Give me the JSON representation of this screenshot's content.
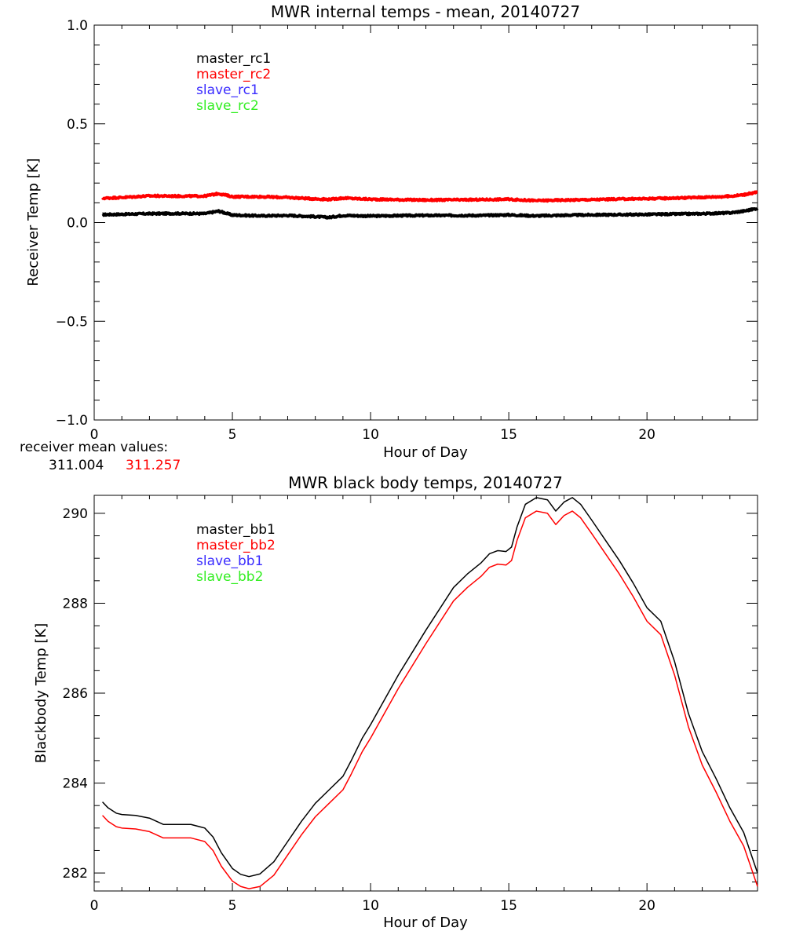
{
  "colors": {
    "black": "#000000",
    "red": "#ff0000",
    "blue": "#3a2cff",
    "green": "#33ee22"
  },
  "chart_data": [
    {
      "type": "line",
      "title": "MWR internal temps - mean, 20140727",
      "xlabel": "Hour of Day",
      "ylabel": "Receiver Temp [K]",
      "xlim": [
        0,
        24
      ],
      "ylim": [
        -1.0,
        1.0
      ],
      "xticks": [
        0,
        5,
        10,
        15,
        20
      ],
      "xtick_labels": [
        "0",
        "5",
        "10",
        "15",
        "20"
      ],
      "yticks": [
        -1.0,
        -0.5,
        0.0,
        0.5,
        1.0
      ],
      "ytick_labels": [
        "−1.0",
        "−0.5",
        "0.0",
        "0.5",
        "1.0"
      ],
      "grid": false,
      "legend_position": "top-left",
      "legend": [
        {
          "label": "master_rc1",
          "color": "#000000"
        },
        {
          "label": "master_rc2",
          "color": "#ff0000"
        },
        {
          "label": "slave_rc1",
          "color": "#3a2cff"
        },
        {
          "label": "slave_rc2",
          "color": "#33ee22"
        }
      ],
      "series": [
        {
          "name": "master_rc1",
          "color": "#000000",
          "x": [
            0.3,
            1,
            2,
            3,
            4,
            4.5,
            5,
            6,
            7,
            8,
            8.5,
            9,
            10,
            11,
            12,
            13,
            14,
            15,
            15.5,
            16,
            17,
            18,
            19,
            20,
            21,
            22,
            23,
            23.5,
            24
          ],
          "y": [
            0.04,
            0.042,
            0.045,
            0.046,
            0.045,
            0.058,
            0.038,
            0.034,
            0.036,
            0.03,
            0.026,
            0.036,
            0.033,
            0.035,
            0.036,
            0.036,
            0.036,
            0.039,
            0.036,
            0.034,
            0.037,
            0.039,
            0.04,
            0.041,
            0.043,
            0.045,
            0.049,
            0.058,
            0.072
          ]
        },
        {
          "name": "master_rc2",
          "color": "#ff0000",
          "x": [
            0.3,
            1,
            2,
            3,
            4,
            4.5,
            5,
            6,
            7,
            8,
            8.5,
            9,
            10,
            11,
            12,
            13,
            14,
            15,
            15.5,
            16,
            17,
            18,
            19,
            20,
            21,
            22,
            23,
            23.5,
            24
          ],
          "y": [
            0.123,
            0.127,
            0.135,
            0.134,
            0.134,
            0.147,
            0.131,
            0.131,
            0.127,
            0.12,
            0.117,
            0.124,
            0.118,
            0.116,
            0.114,
            0.115,
            0.116,
            0.118,
            0.114,
            0.111,
            0.114,
            0.116,
            0.119,
            0.121,
            0.124,
            0.128,
            0.133,
            0.141,
            0.154
          ]
        }
      ]
    },
    {
      "type": "line",
      "title": "MWR black body temps, 20140727",
      "xlabel": "Hour of Day",
      "ylabel": "Blackbody Temp [K]",
      "xlim": [
        0,
        24
      ],
      "ylim": [
        281.6,
        290.4
      ],
      "xticks": [
        0,
        5,
        10,
        15,
        20
      ],
      "xtick_labels": [
        "0",
        "5",
        "10",
        "15",
        "20"
      ],
      "yticks": [
        282,
        284,
        286,
        288,
        290
      ],
      "ytick_labels": [
        "282",
        "284",
        "286",
        "288",
        "290"
      ],
      "grid": false,
      "legend_position": "top-left",
      "legend": [
        {
          "label": "master_bb1",
          "color": "#000000"
        },
        {
          "label": "master_bb2",
          "color": "#ff0000"
        },
        {
          "label": "slave_bb1",
          "color": "#3a2cff"
        },
        {
          "label": "slave_bb2",
          "color": "#33ee22"
        }
      ],
      "series": [
        {
          "name": "master_bb1",
          "color": "#000000",
          "x": [
            0.3,
            0.5,
            0.8,
            1.0,
            1.5,
            2.0,
            2.5,
            3.0,
            3.5,
            4.0,
            4.3,
            4.6,
            5.0,
            5.3,
            5.6,
            6.0,
            6.5,
            7.0,
            7.5,
            8.0,
            8.5,
            9.0,
            9.3,
            9.7,
            10.0,
            11.0,
            12.0,
            13.0,
            13.5,
            14.0,
            14.3,
            14.6,
            14.9,
            15.1,
            15.3,
            15.6,
            16.0,
            16.4,
            16.7,
            17.0,
            17.3,
            17.6,
            18.0,
            18.5,
            19.0,
            19.5,
            20.0,
            20.5,
            21.0,
            21.5,
            22.0,
            22.5,
            23.0,
            23.5,
            24.0
          ],
          "y": [
            283.58,
            283.45,
            283.33,
            283.3,
            283.28,
            283.22,
            283.08,
            283.08,
            283.08,
            283.0,
            282.8,
            282.45,
            282.1,
            281.97,
            281.92,
            281.98,
            282.25,
            282.7,
            283.15,
            283.55,
            283.85,
            284.15,
            284.5,
            285.0,
            285.3,
            286.4,
            287.4,
            288.35,
            288.65,
            288.9,
            289.1,
            289.17,
            289.15,
            289.25,
            289.7,
            290.2,
            290.35,
            290.3,
            290.05,
            290.25,
            290.35,
            290.2,
            289.85,
            289.4,
            288.95,
            288.45,
            287.9,
            287.6,
            286.7,
            285.55,
            284.7,
            284.1,
            283.45,
            282.9,
            282.0
          ]
        },
        {
          "name": "master_bb2",
          "color": "#ff0000",
          "x": [
            0.3,
            0.5,
            0.8,
            1.0,
            1.5,
            2.0,
            2.5,
            3.0,
            3.5,
            4.0,
            4.3,
            4.6,
            5.0,
            5.3,
            5.6,
            6.0,
            6.5,
            7.0,
            7.5,
            8.0,
            8.5,
            9.0,
            9.3,
            9.7,
            10.0,
            11.0,
            12.0,
            13.0,
            13.5,
            14.0,
            14.3,
            14.6,
            14.9,
            15.1,
            15.3,
            15.6,
            16.0,
            16.4,
            16.7,
            17.0,
            17.3,
            17.6,
            18.0,
            18.5,
            19.0,
            19.5,
            20.0,
            20.5,
            21.0,
            21.5,
            22.0,
            22.5,
            23.0,
            23.5,
            24.0
          ],
          "y": [
            283.28,
            283.15,
            283.03,
            283.0,
            282.98,
            282.92,
            282.78,
            282.78,
            282.78,
            282.7,
            282.5,
            282.15,
            281.82,
            281.7,
            281.65,
            281.7,
            281.95,
            282.4,
            282.85,
            283.25,
            283.55,
            283.85,
            284.2,
            284.7,
            285.0,
            286.1,
            287.1,
            288.05,
            288.35,
            288.6,
            288.8,
            288.87,
            288.85,
            288.95,
            289.4,
            289.9,
            290.05,
            290.0,
            289.75,
            289.95,
            290.05,
            289.9,
            289.55,
            289.1,
            288.65,
            288.15,
            287.6,
            287.3,
            286.4,
            285.25,
            284.4,
            283.8,
            283.15,
            282.6,
            281.7
          ]
        }
      ]
    }
  ],
  "receiver_mean": {
    "label": "receiver mean values:",
    "value1": "311.004",
    "value2": "311.257"
  }
}
